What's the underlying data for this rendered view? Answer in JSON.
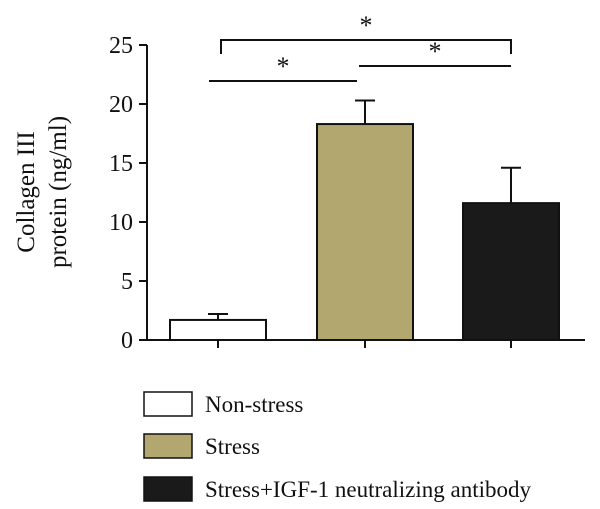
{
  "chart_data": {
    "type": "bar",
    "categories": [
      "Non-stress",
      "Stress",
      "Stress+IGF-1 neutralizing antibody"
    ],
    "values": [
      1.7,
      18.3,
      11.6
    ],
    "errors": [
      0.5,
      2.0,
      3.0
    ],
    "ylabel_line1": "Collagen III",
    "ylabel_line2": "protein (ng/ml)",
    "ylim": [
      0,
      25
    ],
    "yticks": [
      "0",
      "5",
      "10",
      "15",
      "20",
      "25"
    ],
    "ytick_values": [
      0,
      5,
      10,
      15,
      20,
      25
    ],
    "significance": [
      {
        "from": 1,
        "to": 3,
        "label": "*"
      },
      {
        "from": 1,
        "to": 2,
        "label": "*"
      },
      {
        "from": 2,
        "to": 3,
        "label": "*"
      }
    ],
    "legend": [
      {
        "label": "Non-stress",
        "color": "#ffffff"
      },
      {
        "label": "Stress",
        "color": "#b2a76e"
      },
      {
        "label": "Stress+IGF-1 neutralizing antibody",
        "color": "#1a1a1a"
      }
    ],
    "grid": false,
    "legend_position": "bottom"
  }
}
